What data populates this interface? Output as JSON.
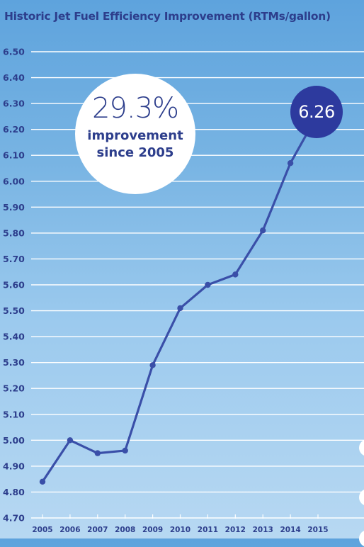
{
  "title": "Historic Jet Fuel Efficiency Improvement (RTMs/gallon)",
  "callout": {
    "value": "29.3%",
    "text_line1": "improvement",
    "text_line2": "since 2005"
  },
  "end_label": "6.26",
  "colors": {
    "line": "#3a4fa8",
    "text": "#2d3e8c",
    "end_bubble": "#2d3a9e",
    "grid": "#ffffff"
  },
  "chart_data": {
    "type": "line",
    "title": "Historic Jet Fuel Efficiency Improvement (RTMs/gallon)",
    "xlabel": "",
    "ylabel": "",
    "x": [
      "2005",
      "2006",
      "2007",
      "2008",
      "2009",
      "2010",
      "2011",
      "2012",
      "2013",
      "2014",
      "2015"
    ],
    "values": [
      4.84,
      5.0,
      4.95,
      4.96,
      5.29,
      5.51,
      5.6,
      5.64,
      5.81,
      6.07,
      6.26
    ],
    "ylim": [
      4.7,
      6.5
    ],
    "yticks": [
      "4.70",
      "4.80",
      "4.90",
      "5.00",
      "5.10",
      "5.20",
      "5.30",
      "5.40",
      "5.50",
      "5.60",
      "5.70",
      "5.80",
      "5.90",
      "6.00",
      "6.10",
      "6.20",
      "6.30",
      "6.40",
      "6.50"
    ],
    "grid": true,
    "legend": "none"
  }
}
